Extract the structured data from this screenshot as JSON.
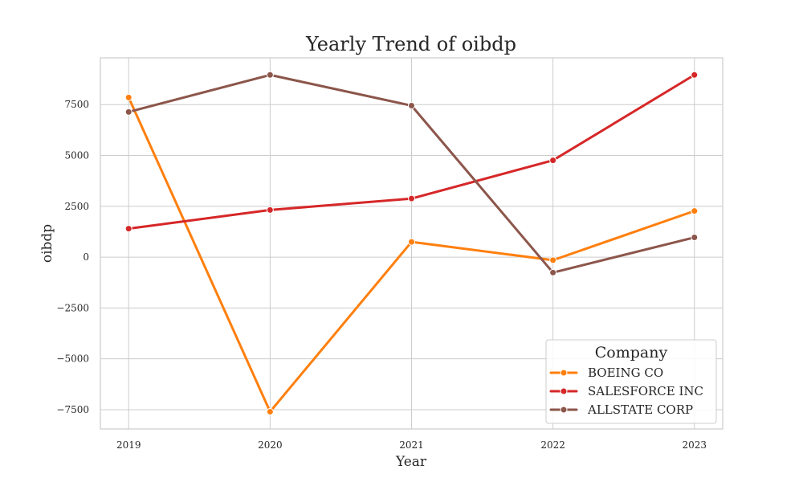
{
  "chart_data": {
    "type": "line",
    "title": "Yearly Trend of oibdp",
    "xlabel": "Year",
    "ylabel": "oibdp",
    "x": [
      2019,
      2020,
      2021,
      2022,
      2023
    ],
    "xlim": [
      2018.8,
      2023.2
    ],
    "ylim": [
      -8450,
      9800
    ],
    "yticks": [
      -7500,
      -5000,
      -2500,
      0,
      2500,
      5000,
      7500
    ],
    "ytick_labels": [
      "−7500",
      "−5000",
      "−2500",
      "0",
      "2500",
      "5000",
      "7500"
    ],
    "grid": true,
    "legend": {
      "title": "Company",
      "placement": "lower-right"
    },
    "series": [
      {
        "name": "BOEING CO",
        "color": "#ff7f0e",
        "values": [
          7850,
          -7600,
          750,
          -150,
          2270
        ]
      },
      {
        "name": "SALESFORCE INC",
        "color": "#d62728",
        "values": [
          1400,
          2320,
          2880,
          4760,
          8960
        ]
      },
      {
        "name": "ALLSTATE CORP",
        "color": "#8c564b",
        "values": [
          7140,
          8960,
          7450,
          -760,
          970
        ]
      }
    ]
  }
}
